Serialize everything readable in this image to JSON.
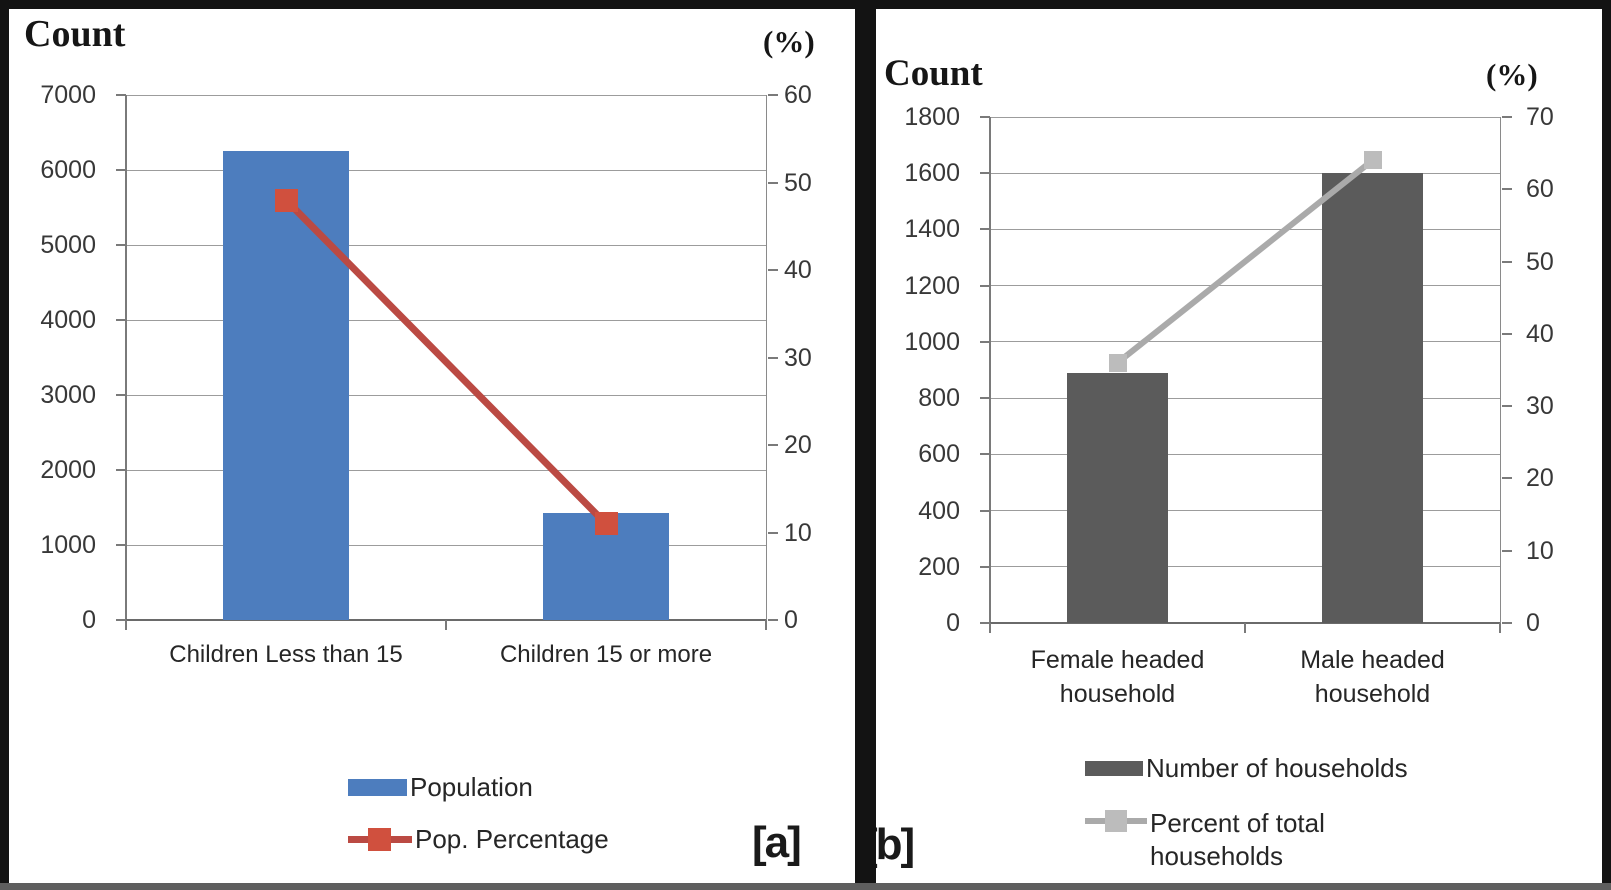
{
  "figure": {
    "background": "#ffffff",
    "frame_color": "#131313",
    "divider_color": "#131313"
  },
  "chart_data": [
    {
      "type": "bar",
      "subtype": "dual-axis bar and line",
      "panel_label": "[a]",
      "categories": [
        "Children Less than  15",
        "Children 15 or more"
      ],
      "series": [
        {
          "name": "Population",
          "type": "bar",
          "axis": "left",
          "values": [
            6250,
            1430
          ],
          "color": "#4d7dbe"
        },
        {
          "name": "Pop. Percentage",
          "type": "line",
          "axis": "right",
          "values": [
            48,
            11
          ],
          "color": "#bb4a43",
          "marker_color": "#d0503e"
        }
      ],
      "left_axis": {
        "title": "Count",
        "min": 0,
        "max": 7000,
        "step": 1000,
        "tick_labels": [
          "7000",
          "6000",
          "5000",
          "4000",
          "3000",
          "2000",
          "1000",
          "0"
        ]
      },
      "right_axis": {
        "title": "(%)",
        "min": 0,
        "max": 60,
        "step": 10,
        "tick_labels": [
          "60",
          "50",
          "40",
          "30",
          "20",
          "10",
          "0"
        ]
      },
      "grid": true,
      "legend_position": "bottom"
    },
    {
      "type": "bar",
      "subtype": "dual-axis bar and line",
      "panel_label": "[b]",
      "categories": [
        "Female headed household",
        "Male headed household"
      ],
      "series": [
        {
          "name": "Number of households",
          "type": "bar",
          "axis": "left",
          "values": [
            890,
            1600
          ],
          "color": "#5b5b5b"
        },
        {
          "name": "Percent of total households",
          "type": "line",
          "axis": "right",
          "values": [
            36,
            64
          ],
          "color": "#aaaaaa",
          "marker_color": "#bcbcbc"
        }
      ],
      "left_axis": {
        "title": "Count",
        "min": 0,
        "max": 1800,
        "step": 200,
        "tick_labels": [
          "1800",
          "1600",
          "1400",
          "1200",
          "1000",
          "800",
          "600",
          "400",
          "200",
          "0"
        ]
      },
      "right_axis": {
        "title": "(%)",
        "min": 0,
        "max": 70,
        "step": 10,
        "tick_labels": [
          "70",
          "60",
          "50",
          "40",
          "30",
          "20",
          "10",
          "0"
        ]
      },
      "grid": true,
      "legend_position": "bottom"
    }
  ]
}
